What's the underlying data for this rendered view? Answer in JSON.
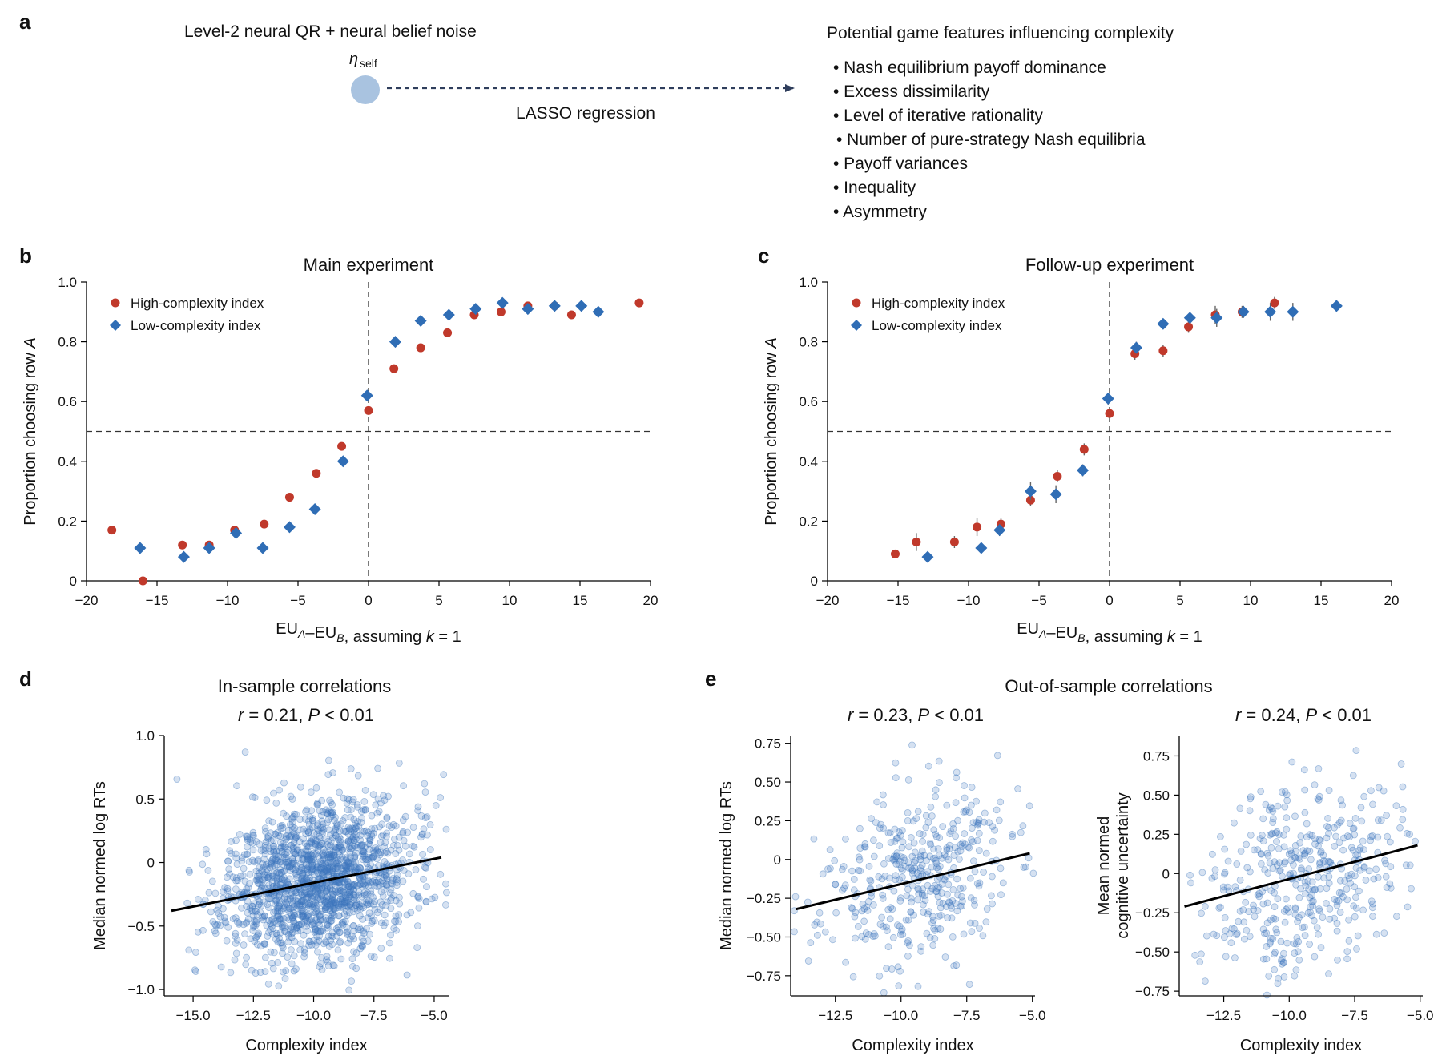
{
  "panel_labels": {
    "a": "a",
    "b": "b",
    "c": "c",
    "d": "d",
    "e": "e"
  },
  "schematic": {
    "model_title": "Level-2 neural QR + neural belief noise",
    "node_label": "η",
    "node_sub": "self",
    "arrow_label": "LASSO regression",
    "features_title": "Potential game features influencing complexity",
    "features": [
      "• Nash equilibrium payoff dominance",
      "• Excess dissimilarity",
      "• Level of iterative rationality",
      "• Number of pure-strategy Nash equilibria",
      "• Payoff variances",
      "• Inequality",
      "• Asymmetry"
    ],
    "node_color": "#a9c3e0"
  },
  "colors": {
    "high": "#c0392b",
    "low": "#2f6db5",
    "scatter": "#3f78bd",
    "fit": "#000000"
  },
  "psych_y_ticks": [
    "0",
    "0.2",
    "0.4",
    "0.6",
    "0.8",
    "1.0"
  ],
  "psych_x_ticks": [
    "−20",
    "−15",
    "−10",
    "−5",
    "0",
    "5",
    "10",
    "15",
    "20"
  ],
  "chart_data": [
    {
      "id": "b",
      "type": "scatter",
      "title": "Main experiment",
      "xlabel": "EU_A–EU_B, assuming k = 1",
      "ylabel": "Proportion choosing row A",
      "xlim": [
        -20,
        20
      ],
      "ylim": [
        0,
        1
      ],
      "reference_lines": {
        "x": 0,
        "y": 0.5
      },
      "legend_position": "top-left",
      "series": [
        {
          "name": "High-complexity index",
          "marker": "circle",
          "x": [
            -18.2,
            -16.0,
            -13.2,
            -11.3,
            -9.5,
            -7.4,
            -5.6,
            -3.7,
            -1.9,
            0.0,
            1.8,
            3.7,
            5.6,
            7.5,
            9.4,
            11.3,
            13.2,
            14.4,
            19.2
          ],
          "y": [
            0.17,
            0.0,
            0.12,
            0.12,
            0.17,
            0.19,
            0.28,
            0.36,
            0.45,
            0.57,
            0.71,
            0.78,
            0.83,
            0.89,
            0.9,
            0.92,
            0.92,
            0.89,
            0.93
          ]
        },
        {
          "name": "Low-complexity index",
          "marker": "diamond",
          "x": [
            -16.2,
            -13.1,
            -11.3,
            -9.4,
            -7.5,
            -5.6,
            -3.8,
            -1.8,
            -0.1,
            1.9,
            3.7,
            5.7,
            7.6,
            9.5,
            11.3,
            13.2,
            15.1,
            16.3
          ],
          "y": [
            0.11,
            0.08,
            0.11,
            0.16,
            0.11,
            0.18,
            0.24,
            0.4,
            0.62,
            0.8,
            0.87,
            0.89,
            0.91,
            0.93,
            0.91,
            0.92,
            0.92,
            0.9
          ]
        }
      ]
    },
    {
      "id": "c",
      "type": "scatter",
      "title": "Follow-up experiment",
      "xlabel": "EU_A–EU_B, assuming k = 1",
      "ylabel": "Proportion choosing row A",
      "xlim": [
        -20,
        20
      ],
      "ylim": [
        0,
        1
      ],
      "reference_lines": {
        "x": 0,
        "y": 0.5
      },
      "legend_position": "top-left",
      "series": [
        {
          "name": "High-complexity index",
          "marker": "circle",
          "x": [
            -15.2,
            -13.7,
            -11.0,
            -9.4,
            -7.7,
            -5.6,
            -3.7,
            -1.8,
            0.0,
            1.8,
            3.8,
            5.6,
            7.5,
            9.4,
            11.7
          ],
          "y": [
            0.09,
            0.13,
            0.13,
            0.18,
            0.19,
            0.27,
            0.35,
            0.44,
            0.56,
            0.76,
            0.77,
            0.85,
            0.89,
            0.9,
            0.93
          ],
          "err": [
            0.01,
            0.03,
            0.02,
            0.03,
            0.02,
            0.02,
            0.02,
            0.02,
            0.02,
            0.02,
            0.02,
            0.02,
            0.03,
            0.02,
            0.02
          ]
        },
        {
          "name": "Low-complexity index",
          "marker": "diamond",
          "x": [
            -12.9,
            -9.1,
            -7.8,
            -5.6,
            -3.8,
            -1.9,
            -0.1,
            1.9,
            3.8,
            5.7,
            7.6,
            9.5,
            11.4,
            13.0,
            16.1
          ],
          "y": [
            0.08,
            0.11,
            0.17,
            0.3,
            0.29,
            0.37,
            0.61,
            0.78,
            0.86,
            0.88,
            0.88,
            0.9,
            0.9,
            0.9,
            0.92
          ],
          "err": [
            0.01,
            0.01,
            0.02,
            0.03,
            0.03,
            0.02,
            0.02,
            0.02,
            0.01,
            0.01,
            0.03,
            0.02,
            0.03,
            0.03,
            0.01
          ]
        }
      ]
    },
    {
      "id": "d",
      "type": "scatter",
      "group_title": "In-sample correlations",
      "title": "r = 0.21, P < 0.01",
      "xlabel": "Complexity index",
      "ylabel": "Median normed log RTs",
      "xlim": [
        -16.2,
        -4.4
      ],
      "ylim": [
        -1.05,
        1.0
      ],
      "x_ticks": [
        -15.0,
        -12.5,
        -10.0,
        -7.5,
        -5.0
      ],
      "y_ticks": [
        -1.0,
        -0.5,
        0,
        0.5,
        1.0
      ],
      "x_tick_labels": [
        "−15.0",
        "−12.5",
        "−10.0",
        "−7.5",
        "−5.0"
      ],
      "y_tick_labels": [
        "−1.0",
        "−0.5",
        "0",
        "0.5",
        "1.0"
      ],
      "fit_line": {
        "x": [
          -15.9,
          -4.7
        ],
        "y": [
          -0.38,
          0.04
        ]
      },
      "cloud": {
        "n": 1700,
        "x_mean": -9.8,
        "x_sd": 1.9,
        "y_sd": 0.3,
        "slope": 0.0375,
        "intercept": -0.14,
        "seed": 11
      }
    },
    {
      "id": "e1",
      "type": "scatter",
      "group_title": "Out-of-sample correlations",
      "title": "r = 0.23, P < 0.01",
      "xlabel": "Complexity index",
      "ylabel": "Median normed log RTs",
      "xlim": [
        -14.2,
        -4.9
      ],
      "ylim": [
        -0.88,
        0.8
      ],
      "x_ticks": [
        -12.5,
        -10.0,
        -7.5,
        -5.0
      ],
      "y_ticks": [
        -0.75,
        -0.5,
        -0.25,
        0,
        0.25,
        0.5,
        0.75
      ],
      "x_tick_labels": [
        "−12.5",
        "−10.0",
        "−7.5",
        "−5.0"
      ],
      "y_tick_labels": [
        "−0.75",
        "−0.50",
        "−0.25",
        "0",
        "0.25",
        "0.50",
        "0.75"
      ],
      "fit_line": {
        "x": [
          -14.0,
          -5.1
        ],
        "y": [
          -0.32,
          0.04
        ]
      },
      "cloud": {
        "n": 420,
        "x_mean": -9.5,
        "x_sd": 1.8,
        "y_sd": 0.28,
        "slope": 0.0405,
        "intercept": -0.12,
        "seed": 23
      }
    },
    {
      "id": "e2",
      "type": "scatter",
      "title": "r = 0.24, P < 0.01",
      "xlabel": "Complexity index",
      "ylabel": "Mean normed cognitive uncertainty",
      "xlim": [
        -14.2,
        -4.9
      ],
      "ylim": [
        -0.78,
        0.88
      ],
      "x_ticks": [
        -12.5,
        -10.0,
        -7.5,
        -5.0
      ],
      "y_ticks": [
        -0.75,
        -0.5,
        -0.25,
        0,
        0.25,
        0.5,
        0.75
      ],
      "x_tick_labels": [
        "−12.5",
        "−10.0",
        "−7.5",
        "−5.0"
      ],
      "y_tick_labels": [
        "−0.75",
        "−0.50",
        "−0.25",
        "0",
        "0.25",
        "0.50",
        "0.75"
      ],
      "fit_line": {
        "x": [
          -14.0,
          -5.1
        ],
        "y": [
          -0.21,
          0.18
        ]
      },
      "cloud": {
        "n": 420,
        "x_mean": -9.5,
        "x_sd": 1.8,
        "y_sd": 0.3,
        "slope": 0.044,
        "intercept": 0.0,
        "seed": 37
      }
    }
  ]
}
